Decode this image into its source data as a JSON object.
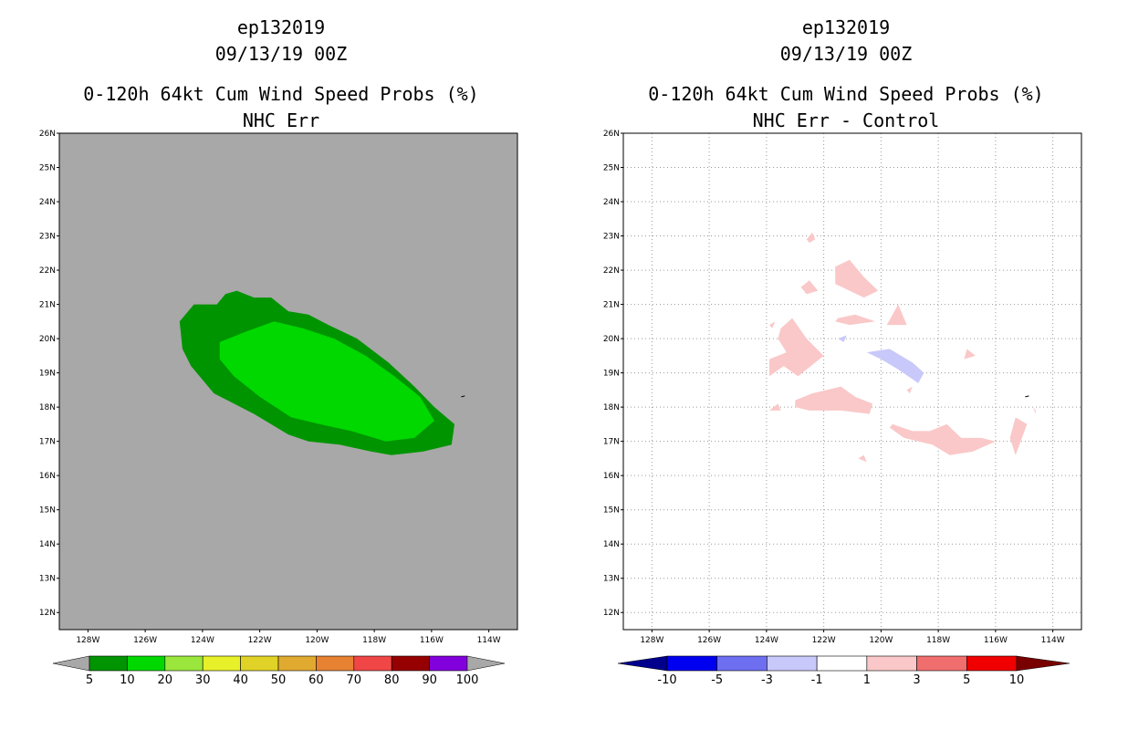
{
  "chart_data": [
    {
      "type": "heatmap",
      "storm_id": "ep132019",
      "datetime": "09/13/19 00Z",
      "title": "0-120h 64kt Cum Wind Speed Probs (%)",
      "subtitle": "NHC Err",
      "lon_ticks": [
        "128W",
        "126W",
        "124W",
        "122W",
        "120W",
        "118W",
        "116W",
        "114W"
      ],
      "lat_ticks": [
        "26N",
        "25N",
        "24N",
        "23N",
        "22N",
        "21N",
        "20N",
        "19N",
        "18N",
        "17N",
        "16N",
        "15N",
        "14N",
        "13N",
        "12N"
      ],
      "xlim_lon": [
        -129.0,
        -113.0
      ],
      "ylim_lat": [
        11.5,
        26.0
      ],
      "grid": false,
      "background_color": "#a8a8a8",
      "colorbar_levels": [
        "5",
        "10",
        "20",
        "30",
        "40",
        "50",
        "60",
        "70",
        "80",
        "90",
        "100"
      ],
      "colorbar_colors": [
        "#009400",
        "#00d800",
        "#9ae63c",
        "#e8f02a",
        "#e0d226",
        "#e0aa30",
        "#e68232",
        "#f04646",
        "#960000",
        "#8200dc"
      ],
      "contours": [
        {
          "level": "5-10 %",
          "color": "#009400",
          "lonlat": [
            [
              -124.8,
              20.5
            ],
            [
              -124.3,
              21.0
            ],
            [
              -123.5,
              21.0
            ],
            [
              -123.2,
              21.3
            ],
            [
              -122.8,
              21.4
            ],
            [
              -122.2,
              21.2
            ],
            [
              -121.6,
              21.2
            ],
            [
              -121.0,
              20.8
            ],
            [
              -120.3,
              20.7
            ],
            [
              -119.6,
              20.4
            ],
            [
              -118.6,
              20.0
            ],
            [
              -117.5,
              19.3
            ],
            [
              -116.6,
              18.6
            ],
            [
              -115.9,
              18.0
            ],
            [
              -115.2,
              17.5
            ],
            [
              -115.3,
              16.9
            ],
            [
              -116.3,
              16.7
            ],
            [
              -117.4,
              16.6
            ],
            [
              -118.1,
              16.7
            ],
            [
              -119.2,
              16.9
            ],
            [
              -120.3,
              17.0
            ],
            [
              -121.0,
              17.2
            ],
            [
              -122.2,
              17.8
            ],
            [
              -123.6,
              18.4
            ],
            [
              -124.4,
              19.2
            ],
            [
              -124.7,
              19.7
            ]
          ]
        },
        {
          "level": "10-20 %",
          "color": "#00d800",
          "lonlat": [
            [
              -123.4,
              19.9
            ],
            [
              -122.5,
              20.2
            ],
            [
              -121.5,
              20.5
            ],
            [
              -120.5,
              20.3
            ],
            [
              -119.4,
              20.0
            ],
            [
              -118.3,
              19.5
            ],
            [
              -117.3,
              18.9
            ],
            [
              -116.4,
              18.3
            ],
            [
              -115.9,
              17.6
            ],
            [
              -116.6,
              17.1
            ],
            [
              -117.6,
              17.0
            ],
            [
              -118.8,
              17.3
            ],
            [
              -119.9,
              17.5
            ],
            [
              -120.9,
              17.7
            ],
            [
              -122.0,
              18.3
            ],
            [
              -122.9,
              18.9
            ],
            [
              -123.4,
              19.4
            ]
          ]
        }
      ]
    },
    {
      "type": "heatmap",
      "storm_id": "ep132019",
      "datetime": "09/13/19 00Z",
      "title": "0-120h 64kt Cum Wind Speed Probs (%)",
      "subtitle": "NHC Err - Control",
      "lon_ticks": [
        "128W",
        "126W",
        "124W",
        "122W",
        "120W",
        "118W",
        "116W",
        "114W"
      ],
      "lat_ticks": [
        "26N",
        "25N",
        "24N",
        "23N",
        "22N",
        "21N",
        "20N",
        "19N",
        "18N",
        "17N",
        "16N",
        "15N",
        "14N",
        "13N",
        "12N"
      ],
      "xlim_lon": [
        -129.0,
        -113.0
      ],
      "ylim_lat": [
        11.5,
        26.0
      ],
      "grid": true,
      "background_color": "#ffffff",
      "colorbar_levels": [
        "-10",
        "-5",
        "-3",
        "-1",
        "1",
        "3",
        "5",
        "10"
      ],
      "colorbar_colors": [
        "#00008c",
        "#0000f0",
        "#6e6ef0",
        "#c8c8fa",
        "#ffffff",
        "#fac8c8",
        "#f06e6e",
        "#f00000",
        "#780000"
      ],
      "contours": [
        {
          "level": "1-3",
          "color": "#fac8c8",
          "lonlat": [
            [
              -121.6,
              22.1
            ],
            [
              -121.1,
              22.3
            ],
            [
              -120.6,
              21.8
            ],
            [
              -120.1,
              21.4
            ],
            [
              -120.6,
              21.2
            ],
            [
              -121.6,
              21.6
            ]
          ]
        },
        {
          "level": "1-3",
          "color": "#fac8c8",
          "lonlat": [
            [
              -122.8,
              21.5
            ],
            [
              -122.5,
              21.7
            ],
            [
              -122.2,
              21.4
            ],
            [
              -122.6,
              21.3
            ]
          ]
        },
        {
          "level": "1-3",
          "color": "#fac8c8",
          "lonlat": [
            [
              -122.6,
              22.9
            ],
            [
              -122.4,
              23.1
            ],
            [
              -122.3,
              22.9
            ],
            [
              -122.5,
              22.8
            ]
          ]
        },
        {
          "level": "1-3",
          "color": "#fac8c8",
          "lonlat": [
            [
              -121.5,
              20.6
            ],
            [
              -120.9,
              20.7
            ],
            [
              -120.2,
              20.5
            ],
            [
              -121.1,
              20.4
            ],
            [
              -121.6,
              20.5
            ]
          ]
        },
        {
          "level": "1-3",
          "color": "#fac8c8",
          "lonlat": [
            [
              -119.8,
              20.4
            ],
            [
              -119.4,
              21.0
            ],
            [
              -119.1,
              20.4
            ]
          ]
        },
        {
          "level": "1-3",
          "color": "#fac8c8",
          "lonlat": [
            [
              -123.5,
              20.3
            ],
            [
              -123.1,
              20.6
            ],
            [
              -122.6,
              20.0
            ],
            [
              -122.0,
              19.5
            ],
            [
              -122.6,
              19.1
            ],
            [
              -122.9,
              18.9
            ],
            [
              -123.4,
              19.2
            ],
            [
              -123.9,
              18.9
            ],
            [
              -123.9,
              19.4
            ],
            [
              -123.3,
              19.6
            ],
            [
              -123.6,
              20.0
            ]
          ]
        },
        {
          "level": "1-3",
          "color": "#fac8c8",
          "lonlat": [
            [
              -123.9,
              20.4
            ],
            [
              -123.7,
              20.5
            ],
            [
              -123.8,
              20.3
            ]
          ]
        },
        {
          "level": "1-3",
          "color": "#fac8c8",
          "lonlat": [
            [
              -123.0,
              18.2
            ],
            [
              -122.4,
              18.4
            ],
            [
              -121.9,
              18.5
            ],
            [
              -121.4,
              18.6
            ],
            [
              -120.9,
              18.3
            ],
            [
              -120.3,
              18.1
            ],
            [
              -120.4,
              17.8
            ],
            [
              -121.4,
              17.9
            ],
            [
              -122.5,
              17.9
            ],
            [
              -123.0,
              18.0
            ]
          ]
        },
        {
          "level": "1-3",
          "color": "#fac8c8",
          "lonlat": [
            [
              -123.9,
              17.9
            ],
            [
              -123.6,
              18.1
            ],
            [
              -123.5,
              17.9
            ]
          ]
        },
        {
          "level": "1-3",
          "color": "#fac8c8",
          "lonlat": [
            [
              -119.6,
              17.5
            ],
            [
              -118.9,
              17.3
            ],
            [
              -118.3,
              17.3
            ],
            [
              -117.7,
              17.5
            ],
            [
              -117.2,
              17.1
            ],
            [
              -116.5,
              17.1
            ],
            [
              -116.0,
              17.0
            ],
            [
              -116.8,
              16.7
            ],
            [
              -117.6,
              16.6
            ],
            [
              -118.2,
              16.9
            ],
            [
              -119.2,
              17.1
            ],
            [
              -119.7,
              17.4
            ]
          ]
        },
        {
          "level": "1-3",
          "color": "#fac8c8",
          "lonlat": [
            [
              -115.3,
              17.7
            ],
            [
              -114.9,
              17.5
            ],
            [
              -115.3,
              16.6
            ],
            [
              -115.5,
              17.1
            ]
          ]
        },
        {
          "level": "1-3",
          "color": "#fac8c8",
          "lonlat": [
            [
              -117.0,
              19.7
            ],
            [
              -116.7,
              19.5
            ],
            [
              -117.1,
              19.4
            ]
          ]
        },
        {
          "level": "1-3",
          "color": "#fac8c8",
          "lonlat": [
            [
              -120.8,
              16.5
            ],
            [
              -120.6,
              16.6
            ],
            [
              -120.5,
              16.4
            ]
          ]
        },
        {
          "level": "1-3",
          "color": "#fac8c8",
          "lonlat": [
            [
              -114.7,
              18.0
            ],
            [
              -114.6,
              17.9
            ],
            [
              -114.6,
              17.8
            ]
          ]
        },
        {
          "level": "1-3",
          "color": "#fac8c8",
          "lonlat": [
            [
              -119.1,
              18.5
            ],
            [
              -118.9,
              18.6
            ],
            [
              -119.0,
              18.4
            ]
          ]
        },
        {
          "level": "-3--1",
          "color": "#c8c8fa",
          "lonlat": [
            [
              -120.5,
              19.6
            ],
            [
              -119.7,
              19.7
            ],
            [
              -118.9,
              19.3
            ],
            [
              -118.5,
              19.0
            ],
            [
              -118.7,
              18.7
            ],
            [
              -119.4,
              19.1
            ],
            [
              -120.0,
              19.4
            ]
          ]
        },
        {
          "level": "-3--1",
          "color": "#c8c8fa",
          "lonlat": [
            [
              -121.5,
              20.0
            ],
            [
              -121.2,
              20.1
            ],
            [
              -121.3,
              19.9
            ]
          ]
        }
      ]
    }
  ]
}
